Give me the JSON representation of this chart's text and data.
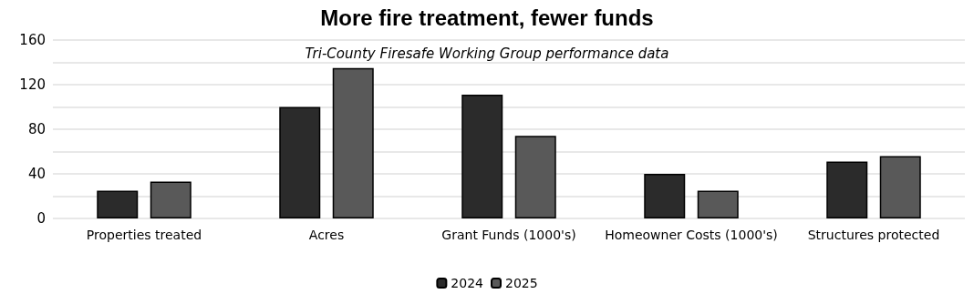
{
  "chart_data": {
    "type": "bar",
    "title": "More fire treatment, fewer funds",
    "subtitle": "Tri-County Firesafe Working Group performance data",
    "categories": [
      "Properties treated",
      "Acres",
      "Grant Funds (1000's)",
      "Homeowner Costs (1000's)",
      "Structures protected"
    ],
    "series": [
      {
        "name": "2024",
        "color": "#2b2b2b",
        "values": [
          25,
          100,
          111,
          40,
          51
        ]
      },
      {
        "name": "2025",
        "color": "#595959",
        "values": [
          33,
          135,
          74,
          25,
          56
        ]
      }
    ],
    "ylim": [
      0,
      160
    ],
    "yticks": [
      0,
      {
        "value": 20,
        "label": null
      },
      40,
      {
        "value": 60,
        "label": null
      },
      80,
      {
        "value": 100,
        "label": null
      },
      120,
      {
        "value": 140,
        "label": null
      },
      160
    ],
    "grid": "y",
    "legend": "bottom"
  }
}
